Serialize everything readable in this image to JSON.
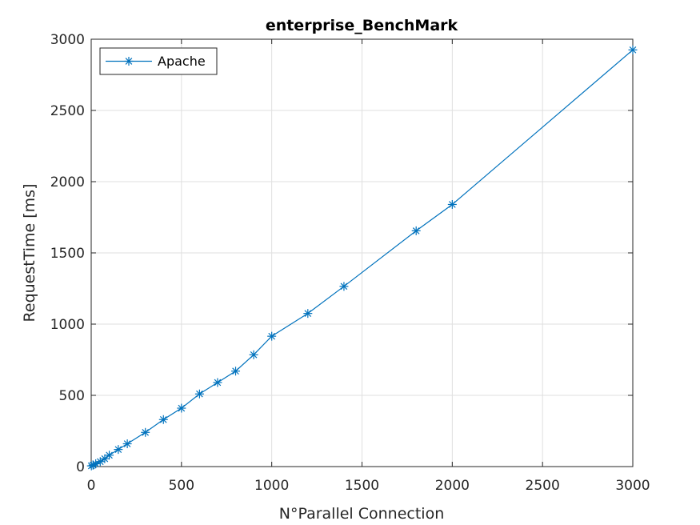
{
  "chart_data": {
    "type": "line",
    "title": "enterprise_BenchMark",
    "xlabel": "N°Parallel Connection",
    "ylabel": "RequestTime [ms]",
    "xlim": [
      0,
      3000
    ],
    "ylim": [
      0,
      3000
    ],
    "xticks": [
      0,
      500,
      1000,
      1500,
      2000,
      2500,
      3000
    ],
    "yticks": [
      0,
      500,
      1000,
      1500,
      2000,
      2500,
      3000
    ],
    "grid": true,
    "legend_position": "top-left",
    "series": [
      {
        "name": "Apache",
        "color": "#0072BD",
        "marker": "asterisk",
        "x": [
          1,
          10,
          25,
          50,
          75,
          100,
          150,
          200,
          300,
          400,
          500,
          600,
          700,
          800,
          900,
          1000,
          1200,
          1400,
          1800,
          2000,
          3000
        ],
        "y": [
          5,
          10,
          20,
          35,
          55,
          80,
          120,
          160,
          240,
          330,
          410,
          510,
          590,
          670,
          785,
          915,
          1075,
          1265,
          1655,
          1840,
          2925
        ]
      }
    ]
  }
}
